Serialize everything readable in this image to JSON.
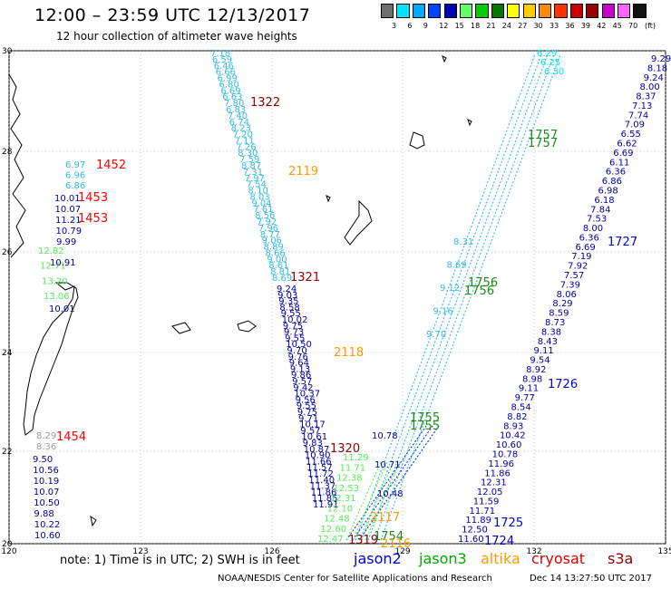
{
  "header": {
    "title": "12:00 – 23:59 UTC 12/13/2017",
    "subtitle": "12 hour collection of altimeter wave heights"
  },
  "scale": {
    "labels": [
      "3",
      "6",
      "9",
      "12",
      "15",
      "18",
      "21",
      "24",
      "27",
      "30",
      "33",
      "36",
      "39",
      "42",
      "45",
      "70"
    ],
    "unit": "(ft)",
    "colors": [
      "#6e6e6e",
      "#00e5ff",
      "#00aaff",
      "#0044ff",
      "#0000b0",
      "#66ff66",
      "#00cc00",
      "#007700",
      "#ffff00",
      "#ffcc00",
      "#ff8c00",
      "#ff3300",
      "#cc0000",
      "#990000",
      "#cc00cc",
      "#ff66ff",
      "#111111"
    ]
  },
  "axes": {
    "lon_labels": [
      "120",
      "123",
      "126",
      "129",
      "132",
      "135"
    ],
    "lat_labels": [
      "30",
      "28",
      "26",
      "24",
      "22",
      "20"
    ]
  },
  "passes": {
    "times": [
      {
        "text": "1322",
        "color": "#8b0000"
      },
      {
        "text": "2119",
        "color": "#ff9900"
      },
      {
        "text": "1452",
        "color": "#ff0000"
      },
      {
        "text": "1453",
        "color": "#ff0000"
      },
      {
        "text": "1453",
        "color": "#ff0000"
      },
      {
        "text": "1757",
        "color": "#1a8c1a"
      },
      {
        "text": "1757",
        "color": "#1a8c1a"
      },
      {
        "text": "1727",
        "color": "#0000cc"
      },
      {
        "text": "1321",
        "color": "#8b0000"
      },
      {
        "text": "1756",
        "color": "#1a8c1a"
      },
      {
        "text": "1756",
        "color": "#1a8c1a"
      },
      {
        "text": "2118",
        "color": "#ff9900"
      },
      {
        "text": "1726",
        "color": "#0000cc"
      },
      {
        "text": "1755",
        "color": "#1a8c1a"
      },
      {
        "text": "1755",
        "color": "#1a8c1a"
      },
      {
        "text": "1454",
        "color": "#ff0000"
      },
      {
        "text": "1320",
        "color": "#8b0000"
      },
      {
        "text": "2117",
        "color": "#ff9900"
      },
      {
        "text": "1725",
        "color": "#0000cc"
      },
      {
        "text": "1724",
        "color": "#0000cc"
      },
      {
        "text": "1319",
        "color": "#8b0000"
      },
      {
        "text": "1754",
        "color": "#1a8c1a"
      },
      {
        "text": "2116",
        "color": "#ff9900"
      }
    ],
    "track_a": {
      "color": "#33bbdd",
      "values": [
        "7.18",
        "6.59",
        "6.46",
        "6.66",
        "6.99",
        "6.80",
        "6.69",
        "6.63",
        "7.80",
        "6.83",
        "7.40",
        "6.74",
        "8.23",
        "7.20",
        "7.11",
        "7.26",
        "8.30",
        "7.59",
        "8.87",
        "7.31",
        "7.97",
        "7.54",
        "8.10",
        "8.03",
        "9.04",
        "7.61",
        "8.56",
        "7.92",
        "7.96",
        "8.77",
        "9.06",
        "8.89",
        "8.66",
        "9.00",
        "8.61",
        "8.81",
        "8.69"
      ]
    },
    "track_b": {
      "color": "#0000a0",
      "values": [
        "9.24",
        "9.03",
        "9.35",
        "8.58",
        "9.55",
        "10.02",
        "9.75",
        "9.73",
        "9.55",
        "10.50",
        "9.70",
        "9.76",
        "9.64",
        "9.13",
        "9.86",
        "9.57",
        "9.42",
        "10.37",
        "9.56",
        "9.55",
        "9.75",
        "9.71",
        "10.17",
        "9.57",
        "10.61",
        "9.83",
        "10.87",
        "10.90",
        "11.66",
        "11.57",
        "11.72",
        "11.40",
        "11.37",
        "11.86",
        "11.85",
        "11.91"
      ]
    },
    "track_c": {
      "color": "#55ee55",
      "values": [
        "11.29",
        "11.71",
        "12.38",
        "12.53",
        "12.31",
        "12.10",
        "12.48",
        "12.60",
        "12.47"
      ]
    },
    "track_d": {
      "color": "#0000a0",
      "values": [
        "9.29",
        "8.18",
        "9.24",
        "8.00",
        "8.37",
        "7.13",
        "7.74",
        "7.09",
        "6.55",
        "6.62",
        "6.69",
        "6.11",
        "6.36",
        "6.86",
        "6.98",
        "6.18",
        "7.84",
        "7.53",
        "8.00",
        "6.36",
        "6.69",
        "7.19",
        "7.92",
        "7.57",
        "7.39",
        "8.06",
        "8.29",
        "8.59",
        "8.73",
        "8.38",
        "8.43",
        "9.11",
        "9.54",
        "8.92",
        "8.98",
        "9.11",
        "9.77",
        "8.54",
        "8.82",
        "8.93",
        "10.42",
        "10.60",
        "10.78",
        "11.96",
        "11.86",
        "12.31",
        "12.05",
        "11.59",
        "11.71",
        "11.89",
        "12.50",
        "11.60"
      ]
    },
    "track_e_top": {
      "color": "#00e5ff",
      "values": [
        "6.29",
        "6.25",
        "6.30"
      ]
    },
    "track_left_cyan": {
      "color": "#33bbdd",
      "values": [
        "6.97",
        "6.96",
        "6.86"
      ]
    },
    "track_left_blue": {
      "color": "#0000a0",
      "values": [
        "10.01",
        "10.07",
        "11.21",
        "10.79",
        "9.99"
      ]
    },
    "track_left_green": {
      "color": "#55ee55",
      "values": [
        "12.82",
        "12.71",
        "13.20",
        "13.06"
      ]
    },
    "track_left_blue2": {
      "color": "#0000a0",
      "values": [
        "10.91",
        "10.01"
      ]
    },
    "track_sw_grey": {
      "color": "#9a9a9a",
      "values": [
        "8.29",
        "8.36"
      ]
    },
    "track_sw_blue": {
      "color": "#0000a0",
      "values": [
        "9.50",
        "10.56",
        "10.19",
        "10.07",
        "10.50",
        "9.88",
        "10.22",
        "10.60"
      ]
    },
    "track_mid_cyan": {
      "color": "#33bbdd",
      "values": [
        "8.31",
        "8.69",
        "9.12",
        "9.16",
        "9.70"
      ]
    },
    "track_mid_blue": {
      "color": "#0000a0",
      "values": [
        "10.78",
        "10.71",
        "10.48"
      ]
    }
  },
  "footer": {
    "note": "note:  1) Time is in UTC;  2) SWH is in feet",
    "legend": [
      {
        "name": "jason2",
        "color": "#0000dd"
      },
      {
        "name": "jason3",
        "color": "#00aa00"
      },
      {
        "name": "altika",
        "color": "#ff9900"
      },
      {
        "name": "cryosat",
        "color": "#dd0000"
      },
      {
        "name": "s3a",
        "color": "#8b0000"
      }
    ],
    "credit": "NOAA/NESDIS Center for Satellite Applications and Research",
    "stamp": "Dec 14 13:27:50 UTC 2017"
  }
}
